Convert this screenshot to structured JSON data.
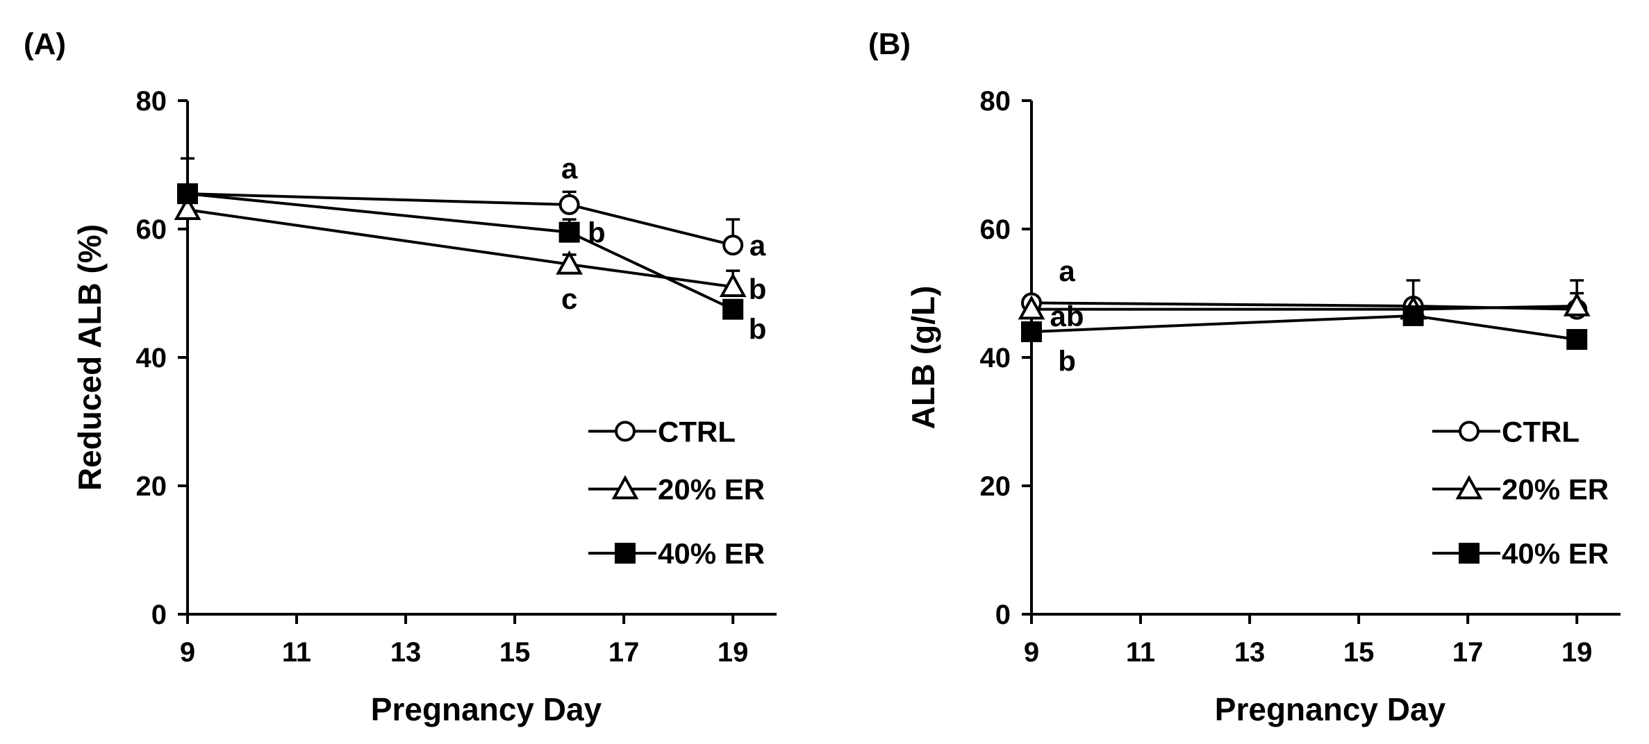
{
  "chart_data": [
    {
      "type": "line",
      "panel_label": "(A)",
      "title": "",
      "xlabel": "Pregnancy Day",
      "ylabel": "Reduced ALB (%)",
      "xlim": [
        9,
        19.8
      ],
      "ylim": [
        0,
        80
      ],
      "xticks": [
        9,
        11,
        13,
        15,
        17,
        19
      ],
      "yticks": [
        0,
        20,
        40,
        60,
        80
      ],
      "x": [
        9,
        16,
        19
      ],
      "series": [
        {
          "name": "CTRL",
          "marker": "circle-open",
          "values": [
            65.5,
            63.8,
            57.5
          ],
          "errors": [
            5.5,
            2.0,
            4.0
          ]
        },
        {
          "name": "20% ER",
          "marker": "triangle-open",
          "values": [
            63.0,
            54.5,
            51.0
          ],
          "errors": [
            1.5,
            1.5,
            2.5
          ]
        },
        {
          "name": "40% ER",
          "marker": "square-filled",
          "values": [
            65.5,
            59.5,
            47.5
          ],
          "errors": [
            1.0,
            2.0,
            1.0
          ]
        }
      ],
      "annotations": [
        {
          "text": "a",
          "x": 16,
          "y": 69.5
        },
        {
          "text": "b",
          "x": 16.5,
          "y": 59.5
        },
        {
          "text": "c",
          "x": 16,
          "y": 49.2
        },
        {
          "text": "a",
          "x": 19.45,
          "y": 57.5
        },
        {
          "text": "b",
          "x": 19.45,
          "y": 50.7
        },
        {
          "text": "b",
          "x": 19.45,
          "y": 44.5
        }
      ],
      "legend": {
        "position": "bottom-right",
        "entries": [
          "CTRL",
          "20% ER",
          "40% ER"
        ]
      }
    },
    {
      "type": "line",
      "panel_label": "(B)",
      "title": "",
      "xlabel": "Pregnancy Day",
      "ylabel": "ALB (g/L)",
      "xlim": [
        9,
        19.8
      ],
      "ylim": [
        0,
        80
      ],
      "xticks": [
        9,
        11,
        13,
        15,
        17,
        19
      ],
      "yticks": [
        0,
        20,
        40,
        60,
        80
      ],
      "x": [
        9,
        16,
        19
      ],
      "series": [
        {
          "name": "CTRL",
          "marker": "circle-open",
          "values": [
            48.5,
            48.0,
            47.5
          ],
          "errors": [
            1.0,
            4.0,
            4.5
          ]
        },
        {
          "name": "20% ER",
          "marker": "triangle-open",
          "values": [
            47.5,
            47.5,
            48.0
          ],
          "errors": [
            1.0,
            1.0,
            2.0
          ]
        },
        {
          "name": "40% ER",
          "marker": "square-filled",
          "values": [
            44.0,
            46.5,
            42.8
          ],
          "errors": [
            1.0,
            1.0,
            1.0
          ]
        }
      ],
      "annotations": [
        {
          "text": "a",
          "x": 9.65,
          "y": 53.5
        },
        {
          "text": "ab",
          "x": 9.65,
          "y": 46.5
        },
        {
          "text": "b",
          "x": 9.65,
          "y": 39.5
        }
      ],
      "legend": {
        "position": "bottom-right",
        "entries": [
          "CTRL",
          "20% ER",
          "40% ER"
        ]
      }
    }
  ]
}
